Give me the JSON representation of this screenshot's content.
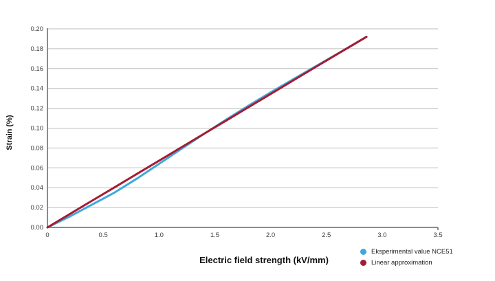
{
  "page": {
    "background": "#ffffff"
  },
  "chart_data": {
    "type": "line",
    "title": "",
    "xlabel": "Electric field strength (kV/mm)",
    "ylabel": "Strain (%)",
    "xlim": [
      0,
      3.5
    ],
    "ylim": [
      0,
      0.2
    ],
    "grid": "horizontal-only",
    "gridline_color": "#bdbdbd",
    "axis_line_color": "#8c8c8c",
    "legend_position": "bottom-right",
    "x_tick_labels": [
      "0",
      "0.5",
      "1.0",
      "1.5",
      "2.0",
      "2.5",
      "3.0",
      "3.5"
    ],
    "x_tick_values": [
      0,
      0.5,
      1.0,
      1.5,
      2.0,
      2.5,
      3.0,
      3.5
    ],
    "y_tick_labels": [
      "0.00",
      "0.02",
      "0.04",
      "0.06",
      "0.08",
      "0.10",
      "0.12",
      "0.14",
      "0.16",
      "0.18",
      "0.20"
    ],
    "y_tick_values": [
      0,
      0.02,
      0.04,
      0.06,
      0.08,
      0.1,
      0.12,
      0.14,
      0.16,
      0.18,
      0.2
    ],
    "x": [
      0,
      0.2,
      0.4,
      0.6,
      0.8,
      1.0,
      1.2,
      1.4,
      1.6,
      1.8,
      2.0,
      2.2,
      2.4,
      2.6,
      2.86
    ],
    "series": [
      {
        "name": "Eksperimental value NCE51",
        "color": "#3fa8db",
        "values": [
          0,
          0.011,
          0.023,
          0.035,
          0.049,
          0.064,
          0.079,
          0.094,
          0.1085,
          0.1225,
          0.136,
          0.149,
          0.162,
          0.1749,
          0.192
        ]
      },
      {
        "name": "Linear approximation",
        "color": "#a51c33",
        "values": [
          0,
          0.0134,
          0.0269,
          0.0403,
          0.0538,
          0.0672,
          0.0806,
          0.0941,
          0.1075,
          0.121,
          0.1344,
          0.1478,
          0.1613,
          0.1747,
          0.192
        ]
      }
    ]
  }
}
